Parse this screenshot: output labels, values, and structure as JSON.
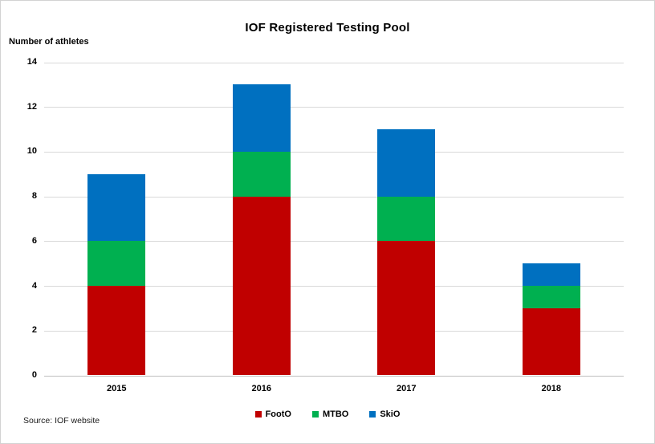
{
  "chart_data": {
    "type": "bar",
    "stacked": true,
    "title": "IOF Registered Testing Pool",
    "y_axis_title": "Number of athletes",
    "categories": [
      "2015",
      "2016",
      "2017",
      "2018"
    ],
    "series": [
      {
        "name": "FootO",
        "color": "#C00000",
        "values": [
          4,
          8,
          6,
          3
        ]
      },
      {
        "name": "MTBO",
        "color": "#00B050",
        "values": [
          2,
          2,
          2,
          1
        ]
      },
      {
        "name": "SkiO",
        "color": "#0070C0",
        "values": [
          3,
          3,
          3,
          1
        ]
      }
    ],
    "totals": [
      9,
      13,
      11,
      5
    ],
    "ylim": [
      0,
      14
    ],
    "yticks": [
      0,
      2,
      4,
      6,
      8,
      10,
      12,
      14
    ],
    "grid": true,
    "gridline_color": "#d9d9d9",
    "axis_line_color": "#bfbfbf",
    "legend_position": "bottom",
    "legend_entries": [
      "FootO",
      "MTBO",
      "SkiO"
    ],
    "source_note": "Source: IOF website",
    "text_color": "#000000",
    "background_color": "#ffffff"
  }
}
